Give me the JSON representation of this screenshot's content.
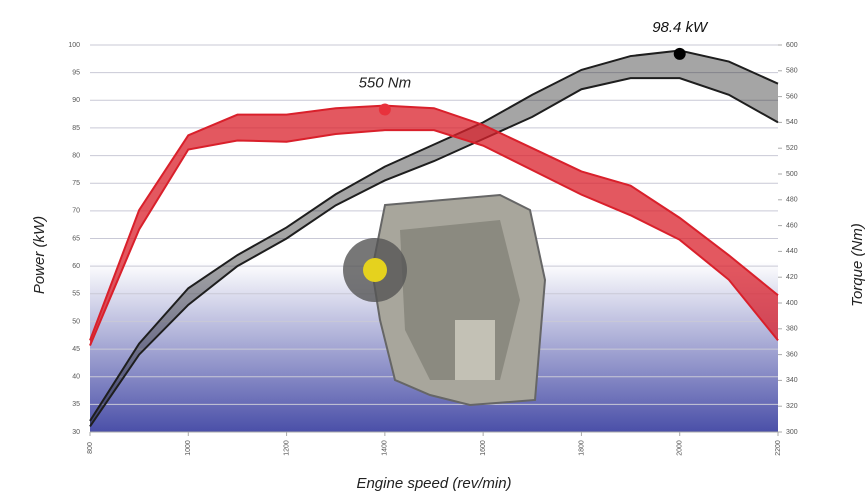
{
  "chart_data": {
    "type": "band",
    "x_label": "Engine speed (rev/min)",
    "y_label": "Power (kW)",
    "y2_label": "Torque (Nm)",
    "x": [
      800,
      900,
      1000,
      1100,
      1200,
      1300,
      1400,
      1500,
      1600,
      1700,
      1800,
      1900,
      2000,
      2100,
      2200
    ],
    "series": [
      {
        "color": "#1e1e1e",
        "axis": "y",
        "values": [
          32,
          46,
          56,
          62,
          67,
          73,
          78,
          82,
          86,
          91,
          95.5,
          98,
          99,
          97,
          93
        ]
      },
      {
        "color": "#1e1e1e",
        "axis": "y",
        "values": [
          31,
          44,
          53,
          60,
          65,
          71,
          75.5,
          79,
          83,
          87,
          92,
          94,
          94,
          91,
          86
        ]
      },
      {
        "color": "#d9202b",
        "axis": "y2",
        "values": [
          371,
          472,
          530,
          546,
          546,
          551,
          553,
          551,
          538,
          520,
          502,
          491,
          466,
          437,
          406
        ]
      },
      {
        "color": "#d9202b",
        "axis": "y2",
        "values": [
          367,
          457,
          519,
          526,
          525,
          531,
          534,
          534,
          522,
          503,
          484,
          468,
          449,
          418,
          371
        ]
      }
    ],
    "annotations": [
      {
        "label": "98.4 kW",
        "x": 2000,
        "value": 98.4,
        "axis": "y",
        "color": "#000000"
      },
      {
        "label": "550 Nm",
        "x": 1400,
        "value": 550,
        "axis": "y2",
        "color": "#e8323c"
      }
    ],
    "xlim": [
      800,
      2200
    ],
    "xticks": [
      800,
      1000,
      1200,
      1400,
      1600,
      1800,
      2000,
      2200
    ],
    "ylim": [
      30,
      100
    ],
    "yticks": [
      30,
      35,
      40,
      45,
      50,
      55,
      60,
      65,
      70,
      75,
      80,
      85,
      90,
      95,
      100
    ],
    "y2lim": [
      300,
      600
    ],
    "y2ticks": [
      300,
      320,
      340,
      360,
      380,
      400,
      420,
      440,
      460,
      480,
      500,
      520,
      540,
      560,
      580,
      600
    ],
    "grid": true
  }
}
